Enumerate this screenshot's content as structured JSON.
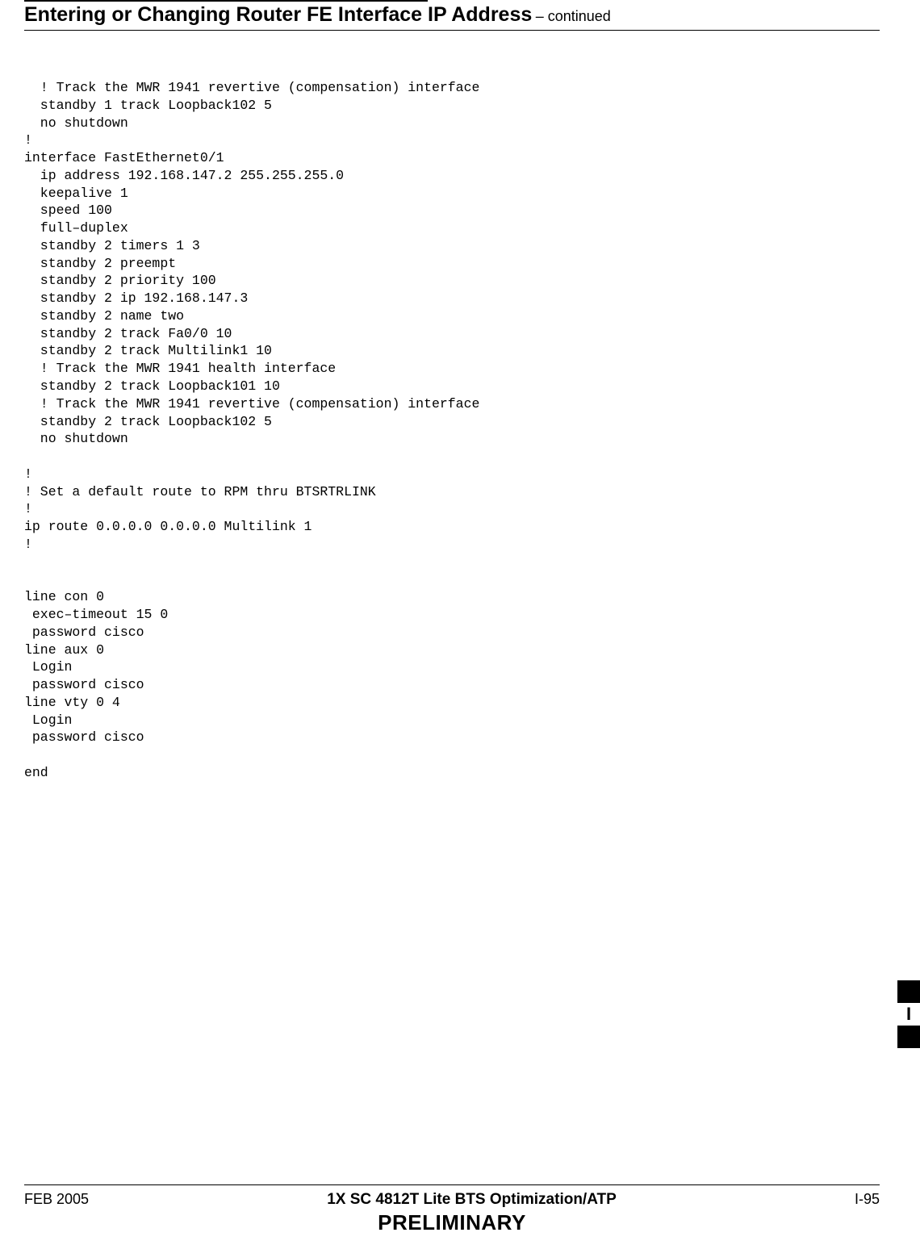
{
  "header": {
    "title_main": "Entering or Changing Router FE Interface IP Address",
    "title_cont": " – continued"
  },
  "code": "  ! Track the MWR 1941 revertive (compensation) interface\n  standby 1 track Loopback102 5\n  no shutdown\n!\ninterface FastEthernet0/1\n  ip address 192.168.147.2 255.255.255.0\n  keepalive 1\n  speed 100\n  full–duplex\n  standby 2 timers 1 3\n  standby 2 preempt\n  standby 2 priority 100\n  standby 2 ip 192.168.147.3\n  standby 2 name two\n  standby 2 track Fa0/0 10\n  standby 2 track Multilink1 10\n  ! Track the MWR 1941 health interface\n  standby 2 track Loopback101 10\n  ! Track the MWR 1941 revertive (compensation) interface\n  standby 2 track Loopback102 5\n  no shutdown\n\n!\n! Set a default route to RPM thru BTSRTRLINK\n!\nip route 0.0.0.0 0.0.0.0 Multilink 1\n!\n\n\nline con 0\n exec–timeout 15 0\n password cisco\nline aux 0\n Login\n password cisco\nline vty 0 4\n Login\n password cisco\n\nend",
  "side_tab": {
    "letter": "I"
  },
  "footer": {
    "left": "FEB 2005",
    "center": "1X SC 4812T Lite BTS Optimization/ATP",
    "right": "I-95",
    "preliminary": "PRELIMINARY"
  }
}
